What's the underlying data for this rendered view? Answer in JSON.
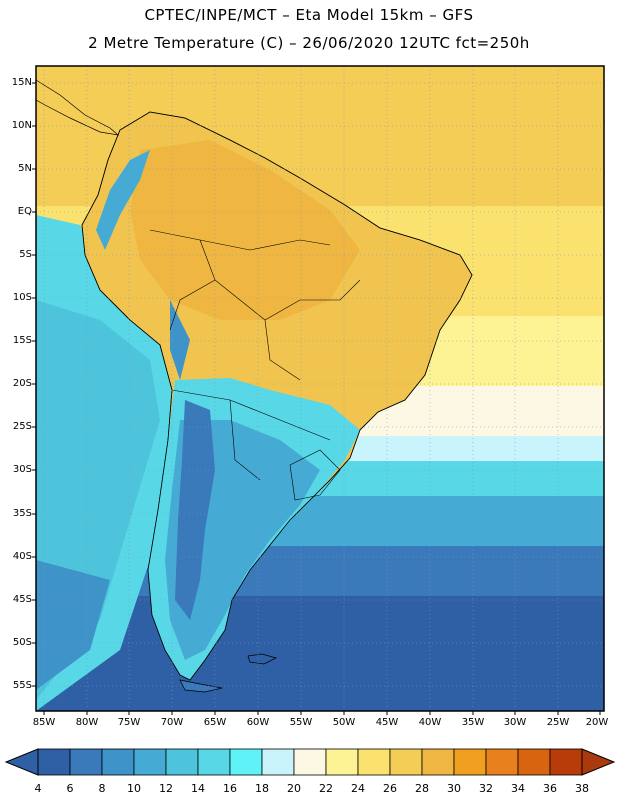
{
  "header": {
    "line1": "CPTEC/INPE/MCT –  Eta Model 15km – GFS",
    "line2": "2 Metre Temperature (C) – 26/06/2020 12UTC fct=250h"
  },
  "map": {
    "lon_range": [
      -86,
      -20
    ],
    "lat_range": [
      -58,
      17
    ],
    "lat_labels": [
      "15N",
      "10N",
      "5N",
      "EQ",
      "5S",
      "10S",
      "15S",
      "20S",
      "25S",
      "30S",
      "35S",
      "40S",
      "45S",
      "50S",
      "55S"
    ],
    "lon_labels": [
      "85W",
      "80W",
      "75W",
      "70W",
      "65W",
      "60W",
      "55W",
      "50W",
      "45W",
      "40W",
      "35W",
      "30W",
      "25W",
      "20W"
    ]
  },
  "colorbar": {
    "labels": [
      "4",
      "6",
      "8",
      "10",
      "12",
      "14",
      "16",
      "18",
      "20",
      "22",
      "24",
      "26",
      "28",
      "30",
      "32",
      "34",
      "36",
      "38"
    ],
    "colors": [
      "#2f5fa4",
      "#3a79ba",
      "#3e93c8",
      "#45abd4",
      "#4dc4dc",
      "#58d7e6",
      "#5ff2f6",
      "#c9f4fb",
      "#fdf8e4",
      "#fdf394",
      "#fbe26e",
      "#f4cd57",
      "#efb741",
      "#f09f1f",
      "#e8801d",
      "#d9640f",
      "#b83b0a"
    ],
    "left_arrow_color": "#2f5fa4",
    "right_arrow_color": "#a83a0d"
  }
}
